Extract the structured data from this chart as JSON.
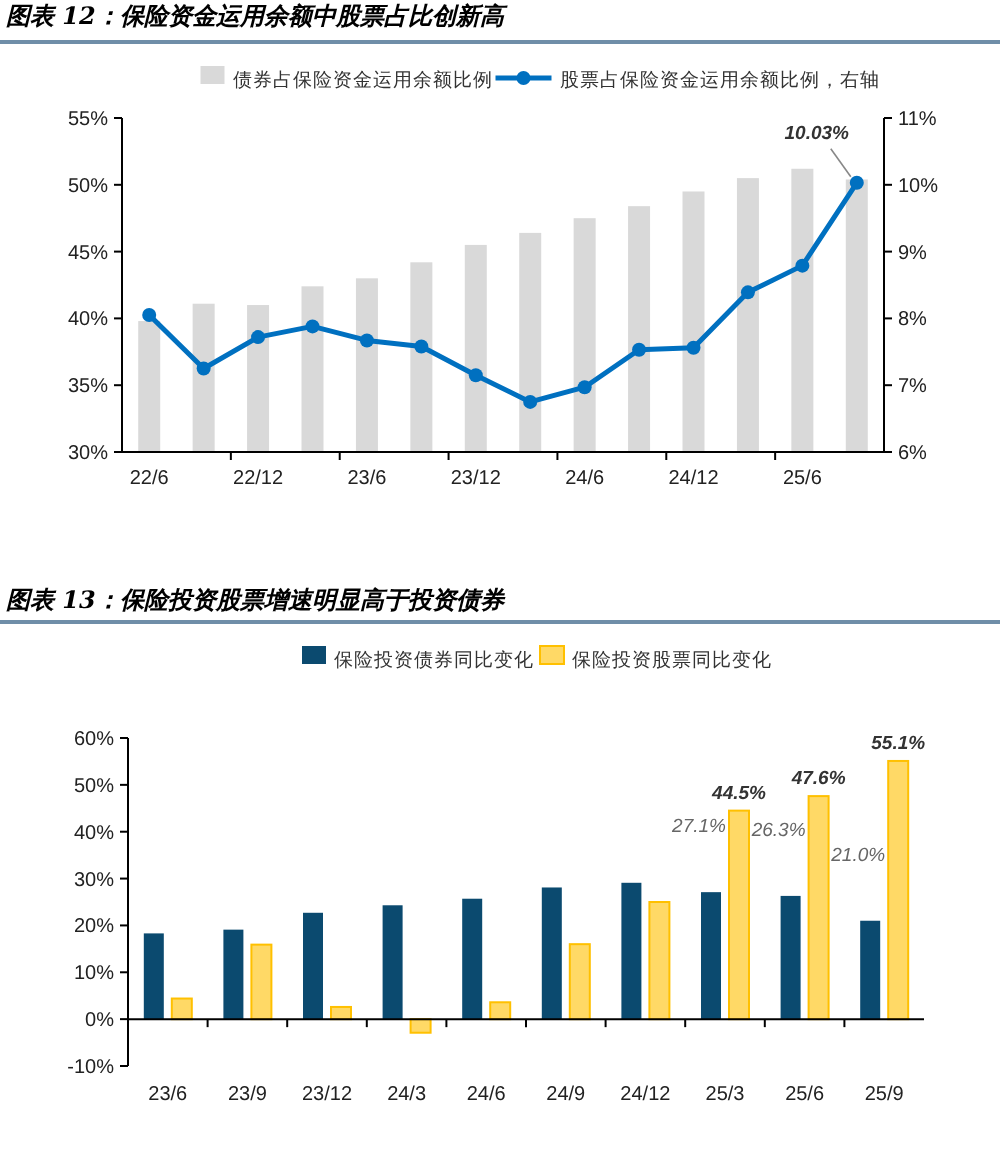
{
  "chart_data": [
    {
      "type": "bar",
      "title": "图表 12：保险资金运用余额中股票占比创新高",
      "legend": "top",
      "categories": [
        "22/6",
        null,
        "22/12",
        null,
        "23/6",
        null,
        "23/12",
        null,
        "24/6",
        null,
        "24/12",
        null,
        "25/6",
        null
      ],
      "series": [
        {
          "name": "债券占保险资金运用余额比例",
          "color": "#d9d9d9",
          "values": [
            39.8,
            41.1,
            41.0,
            42.4,
            43.0,
            44.2,
            45.5,
            46.4,
            47.5,
            48.4,
            49.5,
            50.5,
            51.2,
            50.4
          ]
        },
        {
          "name": "股票占保险资金运用余额比例，右轴",
          "type": "line",
          "axis": "y2",
          "marker": "circle",
          "color": "#0070c0",
          "values": [
            8.05,
            7.25,
            7.72,
            7.88,
            7.67,
            7.58,
            7.15,
            6.75,
            6.97,
            7.53,
            7.56,
            8.39,
            8.79,
            10.03
          ],
          "value_labels": [
            null,
            null,
            null,
            null,
            null,
            null,
            null,
            null,
            null,
            null,
            null,
            null,
            null,
            "10.03%"
          ]
        }
      ],
      "ylim": [
        30,
        55
      ],
      "yticks": [
        {
          "value": 30,
          "label": "30%"
        },
        {
          "value": 35,
          "label": "35%"
        },
        {
          "value": 40,
          "label": "40%"
        },
        {
          "value": 45,
          "label": "45%"
        },
        {
          "value": 50,
          "label": "50%"
        },
        {
          "value": 55,
          "label": "55%"
        }
      ],
      "y2lim": [
        6,
        11
      ],
      "y2ticks": [
        {
          "value": 6,
          "label": "6%"
        },
        {
          "value": 7,
          "label": "7%"
        },
        {
          "value": 8,
          "label": "8%"
        },
        {
          "value": 9,
          "label": "9%"
        },
        {
          "value": 10,
          "label": "10%"
        },
        {
          "value": 11,
          "label": "11%"
        }
      ]
    },
    {
      "type": "bar",
      "title": "图表 13：保险投资股票增速明显高于投资债券",
      "legend": "top",
      "categories": [
        "23/6",
        "23/9",
        "23/12",
        "24/3",
        "24/6",
        "24/9",
        "24/12",
        "25/3",
        "25/6",
        "25/9"
      ],
      "series": [
        {
          "name": "保险投资债券同比变化",
          "color": "#0b4a6f",
          "values": [
            18.3,
            19.1,
            22.7,
            24.3,
            25.7,
            28.1,
            29.1,
            27.1,
            26.3,
            21.0
          ],
          "value_labels": [
            null,
            null,
            null,
            null,
            null,
            null,
            null,
            "27.1%",
            "26.3%",
            "21.0%"
          ]
        },
        {
          "name": "保险投资股票同比变化",
          "color": "#ffd966",
          "values": [
            4.4,
            15.9,
            2.6,
            -2.9,
            3.6,
            16.0,
            25.0,
            44.5,
            47.6,
            55.1
          ],
          "value_labels": [
            null,
            null,
            null,
            null,
            null,
            null,
            null,
            "44.5%",
            "47.6%",
            "55.1%"
          ]
        }
      ],
      "ylim": [
        -10,
        60
      ],
      "yticks": [
        {
          "value": -10,
          "label": "-10%"
        },
        {
          "value": 0,
          "label": "0%"
        },
        {
          "value": 10,
          "label": "10%"
        },
        {
          "value": 20,
          "label": "20%"
        },
        {
          "value": 30,
          "label": "30%"
        },
        {
          "value": 40,
          "label": "40%"
        },
        {
          "value": 50,
          "label": "50%"
        },
        {
          "value": 60,
          "label": "60%"
        }
      ]
    }
  ]
}
